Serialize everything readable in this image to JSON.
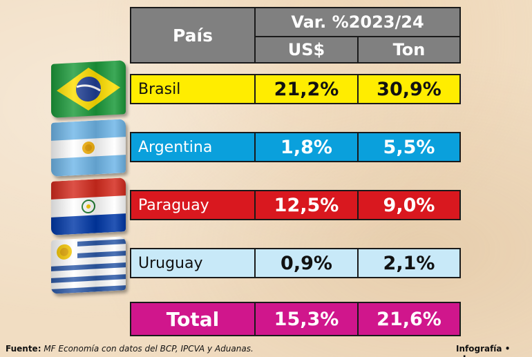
{
  "header": {
    "pais": "País",
    "var": "Var. %2023/24",
    "usd": "US$",
    "ton": "Ton"
  },
  "rows": [
    {
      "country": "Brasil",
      "usd": "21,2%",
      "ton": "30,9%",
      "color": "#ffed00",
      "flag": "brazil-flag-icon"
    },
    {
      "country": "Argentina",
      "usd": "1,8%",
      "ton": "5,5%",
      "color": "#0aa0dc",
      "flag": "argentina-flag-icon"
    },
    {
      "country": "Paraguay",
      "usd": "12,5%",
      "ton": "9,0%",
      "color": "#d9181f",
      "flag": "paraguay-flag-icon"
    },
    {
      "country": "Uruguay",
      "usd": "0,9%",
      "ton": "2,1%",
      "color": "#c8e9f8",
      "flag": "uruguay-flag-icon"
    }
  ],
  "total": {
    "label": "Total",
    "usd": "15,3%",
    "ton": "21,6%",
    "color": "#d0168c"
  },
  "footer": {
    "fuente_label": "Fuente:",
    "fuente_text": "MF Economía con datos del BCP, IPCVA y Aduanas.",
    "infografia": "Infografía",
    "logo": "abc"
  }
}
